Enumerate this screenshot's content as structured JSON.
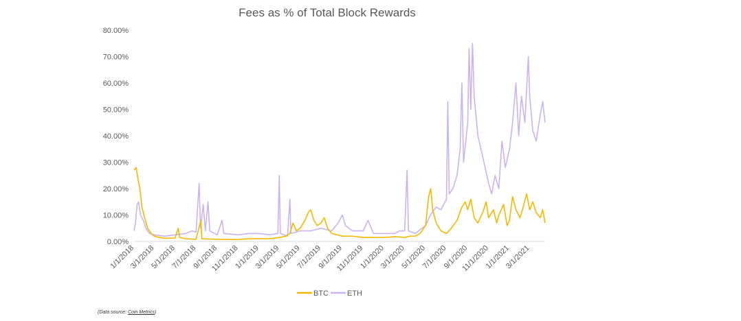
{
  "chart_data": {
    "type": "line",
    "title": "Fees as % of Total Block Rewards",
    "xlabel": "",
    "ylabel": "",
    "ylim": [
      0,
      80
    ],
    "y_ticks": [
      "0.00%",
      "10.00%",
      "20.00%",
      "30.00%",
      "40.00%",
      "50.00%",
      "60.00%",
      "70.00%",
      "80.00%"
    ],
    "x_ticks": [
      "1/1/2018",
      "3/1/2018",
      "5/1/2018",
      "7/1/2018",
      "9/1/2018",
      "11/1/2018",
      "1/1/2019",
      "3/1/2019",
      "5/1/2019",
      "7/1/2019",
      "9/1/2019",
      "11/1/2019",
      "1/1/2020",
      "3/1/2020",
      "5/1/2020",
      "7/1/2020",
      "9/1/2020",
      "11/1/2020",
      "1/1/2021",
      "3/1/2021"
    ],
    "x_range": [
      "1/1/2018",
      "4/15/2021"
    ],
    "grid": false,
    "legend_position": "bottom",
    "colors": {
      "BTC": "#f5b800",
      "ETH": "#c9b3f2"
    },
    "series": [
      {
        "name": "BTC",
        "points": [
          [
            "1/1/2018",
            27
          ],
          [
            "1/7/2018",
            28
          ],
          [
            "1/12/2018",
            24
          ],
          [
            "1/18/2018",
            20
          ],
          [
            "1/24/2018",
            13
          ],
          [
            "2/1/2018",
            9
          ],
          [
            "2/10/2018",
            5
          ],
          [
            "2/20/2018",
            3
          ],
          [
            "3/1/2018",
            2
          ],
          [
            "3/15/2018",
            1.5
          ],
          [
            "4/1/2018",
            1.2
          ],
          [
            "5/1/2018",
            1.3
          ],
          [
            "5/10/2018",
            5
          ],
          [
            "5/14/2018",
            1.5
          ],
          [
            "6/1/2018",
            1
          ],
          [
            "7/1/2018",
            0.8
          ],
          [
            "7/15/2018",
            8
          ],
          [
            "7/18/2018",
            1
          ],
          [
            "9/1/2018",
            0.8
          ],
          [
            "11/1/2018",
            0.7
          ],
          [
            "12/1/2018",
            1
          ],
          [
            "1/1/2019",
            1
          ],
          [
            "2/1/2019",
            1
          ],
          [
            "3/1/2019",
            1.5
          ],
          [
            "3/20/2019",
            2
          ],
          [
            "4/1/2019",
            3
          ],
          [
            "4/10/2019",
            7
          ],
          [
            "4/20/2019",
            4
          ],
          [
            "5/1/2019",
            5
          ],
          [
            "5/15/2019",
            8
          ],
          [
            "5/25/2019",
            11
          ],
          [
            "6/1/2019",
            12
          ],
          [
            "6/10/2019",
            8
          ],
          [
            "6/20/2019",
            6
          ],
          [
            "7/1/2019",
            7
          ],
          [
            "7/10/2019",
            9
          ],
          [
            "7/20/2019",
            5
          ],
          [
            "8/1/2019",
            3
          ],
          [
            "9/1/2019",
            2
          ],
          [
            "10/1/2019",
            2
          ],
          [
            "11/1/2019",
            1.5
          ],
          [
            "12/1/2019",
            1.5
          ],
          [
            "1/1/2020",
            1.5
          ],
          [
            "2/1/2020",
            1.8
          ],
          [
            "3/1/2020",
            1.5
          ],
          [
            "3/15/2020",
            2
          ],
          [
            "4/1/2020",
            2
          ],
          [
            "4/15/2020",
            3
          ],
          [
            "5/1/2020",
            6
          ],
          [
            "5/10/2020",
            17
          ],
          [
            "5/16/2020",
            20
          ],
          [
            "5/22/2020",
            12
          ],
          [
            "6/1/2020",
            7
          ],
          [
            "6/15/2020",
            4
          ],
          [
            "7/1/2020",
            3
          ],
          [
            "7/15/2020",
            5
          ],
          [
            "8/1/2020",
            8
          ],
          [
            "8/15/2020",
            13
          ],
          [
            "8/25/2020",
            15
          ],
          [
            "9/1/2020",
            12
          ],
          [
            "9/10/2020",
            16
          ],
          [
            "9/20/2020",
            9
          ],
          [
            "10/1/2020",
            7
          ],
          [
            "10/15/2020",
            11
          ],
          [
            "10/25/2020",
            15
          ],
          [
            "11/1/2020",
            9
          ],
          [
            "11/15/2020",
            12
          ],
          [
            "11/25/2020",
            7
          ],
          [
            "12/1/2020",
            10
          ],
          [
            "12/15/2020",
            14
          ],
          [
            "12/25/2020",
            6
          ],
          [
            "1/1/2021",
            8
          ],
          [
            "1/10/2021",
            17
          ],
          [
            "1/20/2021",
            12
          ],
          [
            "2/1/2021",
            9
          ],
          [
            "2/10/2021",
            13
          ],
          [
            "2/20/2021",
            18
          ],
          [
            "3/1/2021",
            12
          ],
          [
            "3/10/2021",
            15
          ],
          [
            "3/20/2021",
            11
          ],
          [
            "4/1/2021",
            9
          ],
          [
            "4/8/2021",
            12
          ],
          [
            "4/15/2021",
            7
          ]
        ]
      },
      {
        "name": "ETH",
        "points": [
          [
            "1/1/2018",
            4
          ],
          [
            "1/5/2018",
            7
          ],
          [
            "1/10/2018",
            14
          ],
          [
            "1/14/2018",
            15
          ],
          [
            "1/20/2018",
            10
          ],
          [
            "1/28/2018",
            8
          ],
          [
            "2/5/2018",
            5
          ],
          [
            "2/15/2018",
            3
          ],
          [
            "3/1/2018",
            2.5
          ],
          [
            "4/1/2018",
            2
          ],
          [
            "5/1/2018",
            2.5
          ],
          [
            "6/1/2018",
            3
          ],
          [
            "6/20/2018",
            4
          ],
          [
            "7/1/2018",
            3.5
          ],
          [
            "7/10/2018",
            22
          ],
          [
            "7/14/2018",
            5
          ],
          [
            "7/22/2018",
            14
          ],
          [
            "7/28/2018",
            4
          ],
          [
            "8/5/2018",
            15
          ],
          [
            "8/10/2018",
            4
          ],
          [
            "9/1/2018",
            2.5
          ],
          [
            "9/15/2018",
            8
          ],
          [
            "9/20/2018",
            3
          ],
          [
            "11/1/2018",
            2.5
          ],
          [
            "12/1/2018",
            3
          ],
          [
            "1/1/2019",
            3
          ],
          [
            "2/1/2019",
            2.5
          ],
          [
            "2/25/2019",
            3
          ],
          [
            "3/1/2019",
            25
          ],
          [
            "3/4/2019",
            3
          ],
          [
            "3/25/2019",
            2
          ],
          [
            "4/1/2019",
            16
          ],
          [
            "4/4/2019",
            3
          ],
          [
            "5/1/2019",
            4
          ],
          [
            "6/1/2019",
            4
          ],
          [
            "7/1/2019",
            5
          ],
          [
            "8/1/2019",
            4
          ],
          [
            "8/20/2019",
            7
          ],
          [
            "9/1/2019",
            10
          ],
          [
            "9/10/2019",
            6
          ],
          [
            "10/1/2019",
            4
          ],
          [
            "11/1/2019",
            4
          ],
          [
            "11/15/2019",
            8
          ],
          [
            "12/1/2019",
            3
          ],
          [
            "1/1/2020",
            3
          ],
          [
            "2/1/2020",
            3
          ],
          [
            "2/15/2020",
            4
          ],
          [
            "3/1/2020",
            4
          ],
          [
            "3/8/2020",
            27
          ],
          [
            "3/12/2020",
            4
          ],
          [
            "4/1/2020",
            3
          ],
          [
            "5/1/2020",
            6
          ],
          [
            "5/15/2020",
            10
          ],
          [
            "6/1/2020",
            13
          ],
          [
            "6/15/2020",
            12
          ],
          [
            "7/1/2020",
            16
          ],
          [
            "7/5/2020",
            53
          ],
          [
            "7/9/2020",
            18
          ],
          [
            "7/20/2020",
            20
          ],
          [
            "8/1/2020",
            25
          ],
          [
            "8/10/2020",
            35
          ],
          [
            "8/15/2020",
            60
          ],
          [
            "8/20/2020",
            30
          ],
          [
            "9/1/2020",
            45
          ],
          [
            "9/5/2020",
            73
          ],
          [
            "9/10/2020",
            50
          ],
          [
            "9/15/2020",
            75
          ],
          [
            "9/20/2020",
            55
          ],
          [
            "10/1/2020",
            40
          ],
          [
            "10/15/2020",
            32
          ],
          [
            "11/1/2020",
            22
          ],
          [
            "11/10/2020",
            18
          ],
          [
            "11/20/2020",
            25
          ],
          [
            "12/1/2020",
            20
          ],
          [
            "12/10/2020",
            38
          ],
          [
            "12/20/2020",
            28
          ],
          [
            "1/1/2021",
            35
          ],
          [
            "1/10/2021",
            45
          ],
          [
            "1/20/2021",
            60
          ],
          [
            "1/28/2021",
            40
          ],
          [
            "2/5/2021",
            55
          ],
          [
            "2/15/2021",
            45
          ],
          [
            "2/25/2021",
            70
          ],
          [
            "3/1/2021",
            55
          ],
          [
            "3/10/2021",
            42
          ],
          [
            "3/20/2021",
            38
          ],
          [
            "4/1/2021",
            48
          ],
          [
            "4/8/2021",
            53
          ],
          [
            "4/15/2021",
            45
          ]
        ]
      }
    ]
  },
  "footer": {
    "prefix": "(Data source: ",
    "link_text": "Coin Metrics",
    "suffix": ")"
  }
}
